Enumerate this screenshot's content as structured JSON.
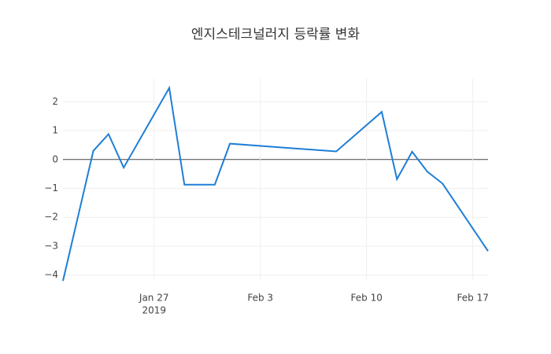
{
  "chart_data": {
    "type": "line",
    "title": "엔지스테크널러지 등락률 변화",
    "x": [
      "2019-01-21",
      "2019-01-23",
      "2019-01-24",
      "2019-01-25",
      "2019-01-28",
      "2019-01-29",
      "2019-01-31",
      "2019-02-01",
      "2019-02-08",
      "2019-02-11",
      "2019-02-12",
      "2019-02-13",
      "2019-02-14",
      "2019-02-15",
      "2019-02-18"
    ],
    "series": [
      {
        "color": "#1f7ed6",
        "values": [
          -4.2,
          0.3,
          0.88,
          -0.28,
          2.48,
          -0.87,
          -0.87,
          0.55,
          0.28,
          1.65,
          -0.68,
          0.27,
          -0.42,
          -0.83,
          -3.17
        ]
      }
    ],
    "xlim": [
      "2019-01-21",
      "2019-02-18"
    ],
    "xticks": [
      {
        "value": "2019-01-27",
        "label": "Jan 27"
      },
      {
        "value": "2019-02-03",
        "label": "Feb 3"
      },
      {
        "value": "2019-02-10",
        "label": "Feb 10"
      },
      {
        "value": "2019-02-17",
        "label": "Feb 17"
      }
    ],
    "x_year_label": "2019",
    "ylim": [
      -4.2,
      2.8
    ],
    "yticks": [
      {
        "value": -4,
        "label": "−4"
      },
      {
        "value": -3,
        "label": "−3"
      },
      {
        "value": -2,
        "label": "−2"
      },
      {
        "value": -1,
        "label": "−1"
      },
      0,
      1,
      2
    ],
    "grid": true
  }
}
